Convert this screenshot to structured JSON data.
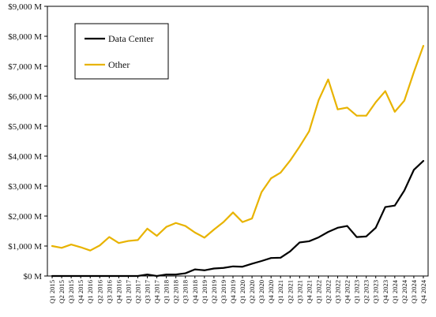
{
  "chart_data": {
    "type": "line",
    "title": "",
    "xlabel": "",
    "ylabel": "",
    "ylim": [
      0,
      9000
    ],
    "ytick_values": [
      0,
      1000,
      2000,
      3000,
      4000,
      5000,
      6000,
      7000,
      8000,
      9000
    ],
    "ytick_labels": [
      "$0 M",
      "$1,000 M",
      "$2,000 M",
      "$3,000 M",
      "$4,000 M",
      "$5,000 M",
      "$6,000 M",
      "$7,000 M",
      "$8,000 M",
      "$9,000 M"
    ],
    "categories": [
      "Q1 2015",
      "Q2 2015",
      "Q3 2015",
      "Q4 2015",
      "Q1 2016",
      "Q2 2016",
      "Q3 2016",
      "Q4 2016",
      "Q1 2017",
      "Q2 2017",
      "Q3 2017",
      "Q4 2017",
      "Q1 2018",
      "Q2 2018",
      "Q3 2018",
      "Q4 2018",
      "Q1 2019",
      "Q2 2019",
      "Q3 2019",
      "Q4 2019",
      "Q1 2020",
      "Q2 2020",
      "Q3 2020",
      "Q4 2020",
      "Q1 2021",
      "Q2 2021",
      "Q3 2021",
      "Q4 2021",
      "Q1 2022",
      "Q2 2022",
      "Q3 2022",
      "Q4 2022",
      "Q1 2023",
      "Q2 2023",
      "Q3 2023",
      "Q4 2023",
      "Q1 2024",
      "Q2 2024",
      "Q3 2024",
      "Q4 2024"
    ],
    "series": [
      {
        "name": "Data Center",
        "color": "#000000",
        "values": [
          0,
          0,
          0,
          0,
          0,
          0,
          0,
          0,
          0,
          0,
          50,
          0,
          50,
          50,
          90,
          220,
          190,
          250,
          270,
          320,
          310,
          410,
          500,
          600,
          610,
          820,
          1120,
          1160,
          1290,
          1470,
          1610,
          1670,
          1300,
          1320,
          1610,
          2300,
          2350,
          2850,
          3540,
          3840
        ]
      },
      {
        "name": "Other",
        "color": "#E8B300",
        "values": [
          1000,
          940,
          1050,
          960,
          850,
          1020,
          1300,
          1100,
          1170,
          1200,
          1580,
          1340,
          1640,
          1770,
          1670,
          1450,
          1280,
          1550,
          1800,
          2120,
          1800,
          1920,
          2800,
          3260,
          3450,
          3850,
          4320,
          4830,
          5870,
          6560,
          5560,
          5620,
          5350,
          5350,
          5800,
          6170,
          5480,
          5850,
          6800,
          7680
        ]
      }
    ],
    "grid": false,
    "legend": {
      "placement": "top-left",
      "boxed": true
    }
  }
}
